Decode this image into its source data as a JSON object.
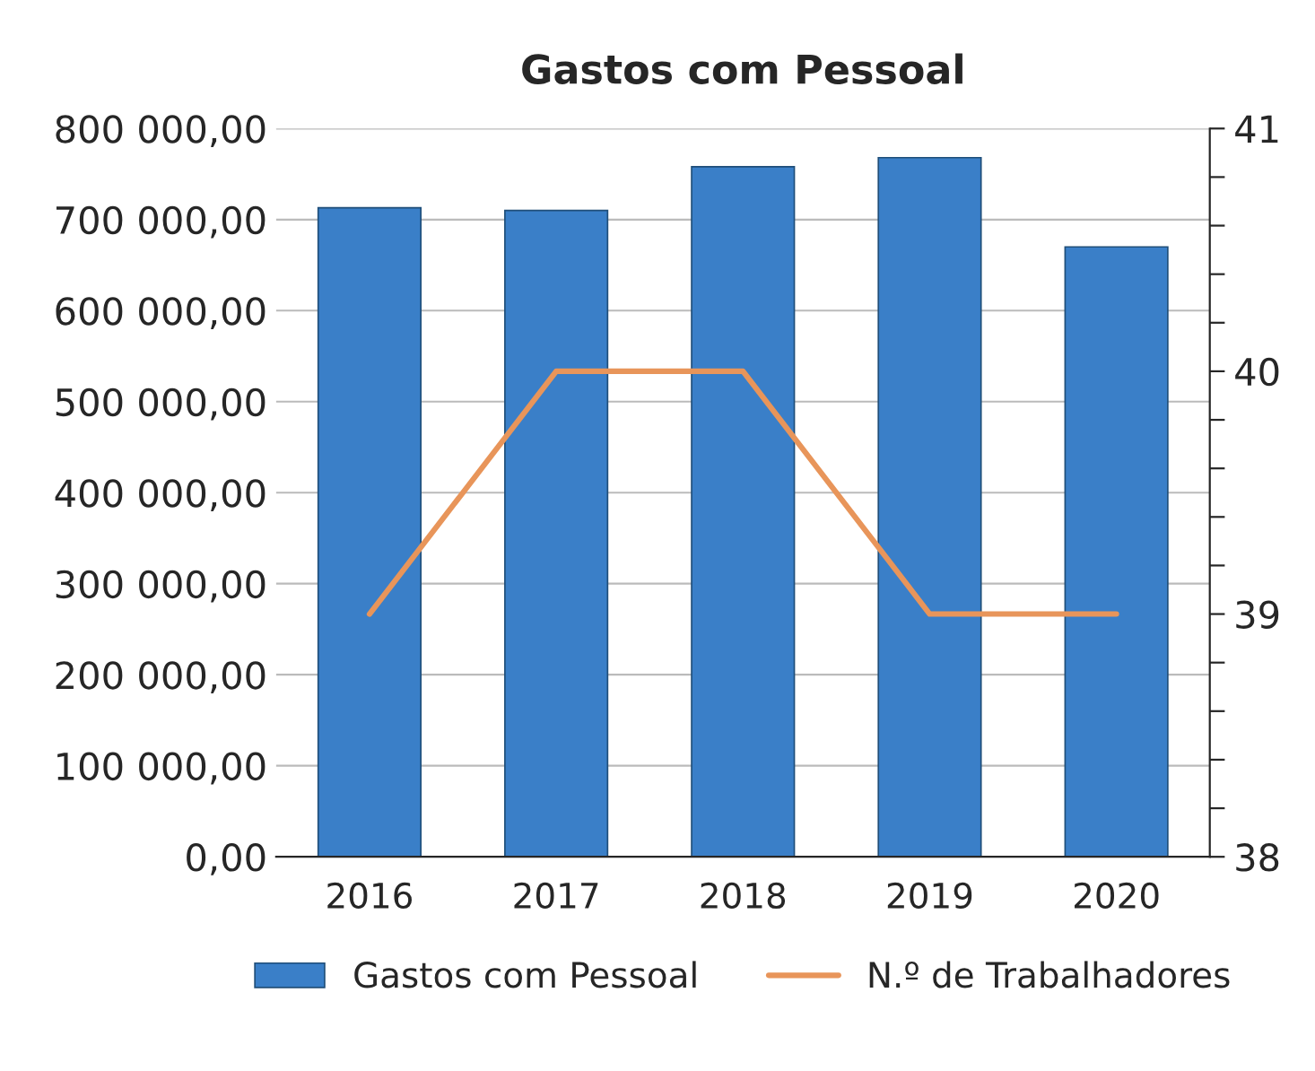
{
  "chart_data": {
    "type": "bar",
    "title": "Gastos com Pessoal",
    "categories": [
      "2016",
      "2017",
      "2018",
      "2019",
      "2020"
    ],
    "series": [
      {
        "name": "Gastos com Pessoal",
        "color": "#3a7fc8",
        "values": [
          713000,
          710000,
          758000,
          768000,
          670000
        ]
      },
      {
        "name": "N.º de Trabalhadores",
        "type": "line",
        "axis": "y2",
        "color": "#e8955a",
        "values": [
          39,
          40,
          40,
          39,
          39
        ]
      }
    ],
    "ylim": [
      0,
      800000
    ],
    "yticks": [
      {
        "value": 0,
        "label": "0,00"
      },
      {
        "value": 100000,
        "label": "100 000,00"
      },
      {
        "value": 200000,
        "label": "200 000,00"
      },
      {
        "value": 300000,
        "label": "300 000,00"
      },
      {
        "value": 400000,
        "label": "400 000,00"
      },
      {
        "value": 500000,
        "label": "500 000,00"
      },
      {
        "value": 600000,
        "label": "600 000,00"
      },
      {
        "value": 700000,
        "label": "700 000,00"
      },
      {
        "value": 800000,
        "label": "800 000,00"
      }
    ],
    "y2lim": [
      38,
      41
    ],
    "y2ticks": [
      38,
      {
        "value": 38.2,
        "label": null
      },
      {
        "value": 38.4,
        "label": null
      },
      {
        "value": 38.6,
        "label": null
      },
      {
        "value": 38.8,
        "label": null
      },
      39,
      {
        "value": 39.2,
        "label": null
      },
      {
        "value": 39.4,
        "label": null
      },
      {
        "value": 39.6,
        "label": null
      },
      {
        "value": 39.8,
        "label": null
      },
      40,
      {
        "value": 40.2,
        "label": null
      },
      {
        "value": 40.4,
        "label": null
      },
      {
        "value": 40.6,
        "label": null
      },
      {
        "value": 40.8,
        "label": null
      },
      41
    ],
    "grid": "y",
    "legend": "bottom"
  }
}
